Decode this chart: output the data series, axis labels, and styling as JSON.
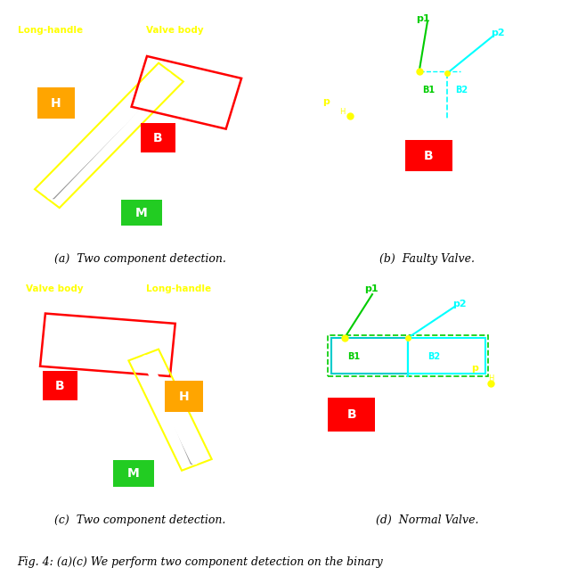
{
  "fig_width": 6.4,
  "fig_height": 6.55,
  "panel_captions": [
    "(a)  Two component detection.",
    "(b)  Faulty Valve.",
    "(c)  Two component detection.",
    "(d)  Normal Valve."
  ],
  "fig_caption": "Fig. 4: (a)(c) We perform two component detection on the binary",
  "yellow": "#ffff00",
  "orange": "#FFA500",
  "red": "#ff0000",
  "green_lbl": "#00bb00",
  "cyan": "#00ffff",
  "white": "#ffffff",
  "black": "#000000",
  "green_box": "#22cc22"
}
